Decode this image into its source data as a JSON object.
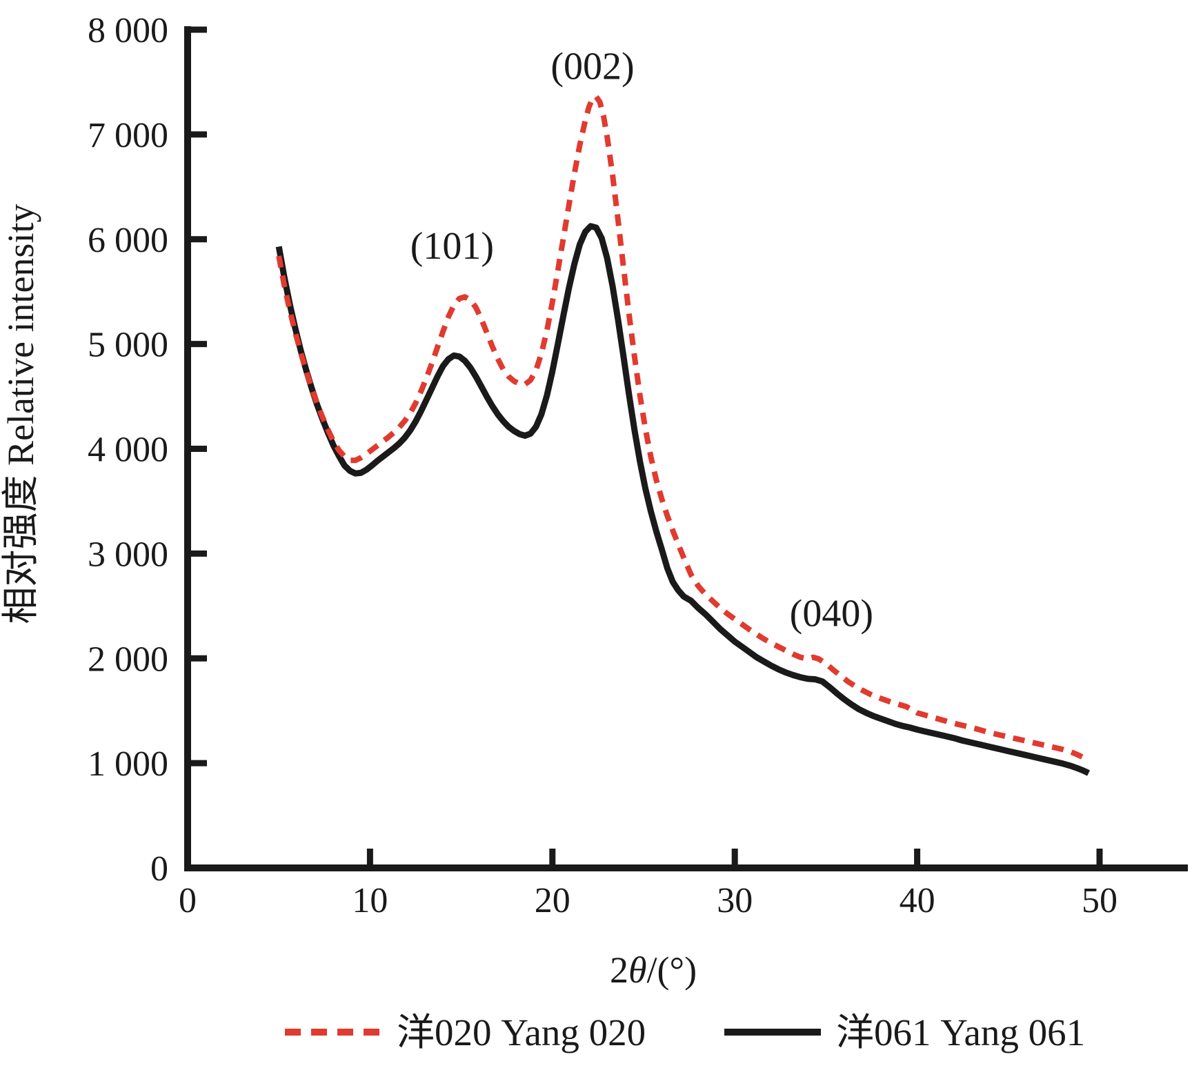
{
  "figure_title": "XRD pattern figure",
  "colors": {
    "background": "#ffffff",
    "axis": "#1a1a1a",
    "series_red": "#e13a2f",
    "series_black": "#1a1a1a"
  },
  "chart_data": {
    "type": "line",
    "title": "",
    "xlabel": "2θ/(°)",
    "ylabel": "相对强度  Relative intensity",
    "xlim": [
      0,
      54.8
    ],
    "ylim": [
      0,
      8030
    ],
    "grid": false,
    "legend_position": "bottom",
    "x_ticks": {
      "values": [
        0,
        10,
        20,
        30,
        40,
        50
      ],
      "labels": [
        "0",
        "10",
        "20",
        "30",
        "40",
        "50"
      ]
    },
    "y_ticks": {
      "values": [
        0,
        1000,
        2000,
        3000,
        4000,
        5000,
        6000,
        7000,
        8000
      ],
      "labels": [
        "0",
        "1 000",
        "2 000",
        "3 000",
        "4 000",
        "5 000",
        "6 000",
        "7 000",
        "8 000"
      ]
    },
    "annotations": [
      {
        "text": "(101)",
        "x": 14.5,
        "y": 5945
      },
      {
        "text": "(002)",
        "x": 22.2,
        "y": 7660
      },
      {
        "text": "(040)",
        "x": 35.3,
        "y": 2440
      }
    ],
    "series": [
      {
        "name": "洋061 Yang 061",
        "short_name": "yang-061",
        "color": "#1a1a1a",
        "style": "solid",
        "points": [
          [
            5.0,
            5930
          ],
          [
            5.3,
            5640
          ],
          [
            5.6,
            5380
          ],
          [
            5.9,
            5150
          ],
          [
            6.2,
            4940
          ],
          [
            6.5,
            4750
          ],
          [
            6.8,
            4580
          ],
          [
            7.1,
            4420
          ],
          [
            7.4,
            4280
          ],
          [
            7.7,
            4150
          ],
          [
            8.0,
            4030
          ],
          [
            8.3,
            3930
          ],
          [
            8.6,
            3840
          ],
          [
            8.9,
            3790
          ],
          [
            9.2,
            3765
          ],
          [
            9.5,
            3770
          ],
          [
            9.8,
            3800
          ],
          [
            10.1,
            3840
          ],
          [
            10.4,
            3885
          ],
          [
            10.7,
            3925
          ],
          [
            11.0,
            3965
          ],
          [
            11.3,
            4005
          ],
          [
            11.6,
            4050
          ],
          [
            11.9,
            4105
          ],
          [
            12.2,
            4175
          ],
          [
            12.5,
            4260
          ],
          [
            12.8,
            4360
          ],
          [
            13.1,
            4470
          ],
          [
            13.4,
            4580
          ],
          [
            13.7,
            4690
          ],
          [
            14.0,
            4790
          ],
          [
            14.3,
            4855
          ],
          [
            14.6,
            4890
          ],
          [
            14.9,
            4880
          ],
          [
            15.2,
            4840
          ],
          [
            15.5,
            4775
          ],
          [
            15.8,
            4690
          ],
          [
            16.1,
            4595
          ],
          [
            16.4,
            4500
          ],
          [
            16.7,
            4410
          ],
          [
            17.0,
            4330
          ],
          [
            17.3,
            4265
          ],
          [
            17.6,
            4210
          ],
          [
            17.9,
            4170
          ],
          [
            18.2,
            4140
          ],
          [
            18.5,
            4125
          ],
          [
            18.8,
            4145
          ],
          [
            19.1,
            4210
          ],
          [
            19.4,
            4330
          ],
          [
            19.7,
            4510
          ],
          [
            20.0,
            4740
          ],
          [
            20.3,
            5000
          ],
          [
            20.6,
            5270
          ],
          [
            20.9,
            5530
          ],
          [
            21.2,
            5760
          ],
          [
            21.5,
            5950
          ],
          [
            21.8,
            6070
          ],
          [
            22.1,
            6125
          ],
          [
            22.4,
            6110
          ],
          [
            22.7,
            6010
          ],
          [
            23.0,
            5820
          ],
          [
            23.3,
            5550
          ],
          [
            23.6,
            5230
          ],
          [
            23.9,
            4880
          ],
          [
            24.2,
            4520
          ],
          [
            24.5,
            4180
          ],
          [
            24.8,
            3880
          ],
          [
            25.1,
            3620
          ],
          [
            25.4,
            3400
          ],
          [
            25.7,
            3210
          ],
          [
            26.0,
            3040
          ],
          [
            26.3,
            2860
          ],
          [
            26.6,
            2730
          ],
          [
            26.9,
            2650
          ],
          [
            27.2,
            2590
          ],
          [
            27.6,
            2550
          ],
          [
            28.0,
            2480
          ],
          [
            28.4,
            2420
          ],
          [
            28.8,
            2350
          ],
          [
            29.2,
            2280
          ],
          [
            29.6,
            2220
          ],
          [
            30.0,
            2160
          ],
          [
            30.4,
            2110
          ],
          [
            30.8,
            2060
          ],
          [
            31.2,
            2010
          ],
          [
            31.6,
            1970
          ],
          [
            32.0,
            1930
          ],
          [
            32.4,
            1895
          ],
          [
            32.8,
            1865
          ],
          [
            33.2,
            1840
          ],
          [
            33.6,
            1820
          ],
          [
            34.0,
            1805
          ],
          [
            34.4,
            1800
          ],
          [
            34.8,
            1780
          ],
          [
            35.2,
            1725
          ],
          [
            35.6,
            1665
          ],
          [
            36.0,
            1610
          ],
          [
            36.4,
            1560
          ],
          [
            36.8,
            1515
          ],
          [
            37.2,
            1480
          ],
          [
            37.6,
            1450
          ],
          [
            38.0,
            1425
          ],
          [
            38.4,
            1400
          ],
          [
            38.8,
            1375
          ],
          [
            39.2,
            1355
          ],
          [
            39.6,
            1340
          ],
          [
            40.0,
            1320
          ],
          [
            40.5,
            1300
          ],
          [
            41.0,
            1280
          ],
          [
            41.5,
            1260
          ],
          [
            42.0,
            1240
          ],
          [
            42.5,
            1215
          ],
          [
            43.0,
            1195
          ],
          [
            43.5,
            1175
          ],
          [
            44.0,
            1155
          ],
          [
            44.5,
            1135
          ],
          [
            45.0,
            1115
          ],
          [
            45.5,
            1095
          ],
          [
            46.0,
            1075
          ],
          [
            46.5,
            1055
          ],
          [
            47.0,
            1035
          ],
          [
            47.5,
            1015
          ],
          [
            48.0,
            995
          ],
          [
            48.4,
            975
          ],
          [
            48.8,
            950
          ],
          [
            49.1,
            930
          ],
          [
            49.4,
            905
          ]
        ]
      },
      {
        "name": "洋020 Yang 020",
        "short_name": "yang-020",
        "color": "#e13a2f",
        "style": "dashed",
        "points": [
          [
            5.0,
            5840
          ],
          [
            5.3,
            5560
          ],
          [
            5.6,
            5320
          ],
          [
            5.9,
            5110
          ],
          [
            6.2,
            4920
          ],
          [
            6.5,
            4740
          ],
          [
            6.8,
            4580
          ],
          [
            7.1,
            4430
          ],
          [
            7.4,
            4300
          ],
          [
            7.7,
            4180
          ],
          [
            8.0,
            4070
          ],
          [
            8.3,
            3985
          ],
          [
            8.6,
            3925
          ],
          [
            8.9,
            3890
          ],
          [
            9.2,
            3890
          ],
          [
            9.5,
            3915
          ],
          [
            9.8,
            3950
          ],
          [
            10.1,
            3990
          ],
          [
            10.4,
            4030
          ],
          [
            10.7,
            4070
          ],
          [
            11.0,
            4110
          ],
          [
            11.3,
            4155
          ],
          [
            11.6,
            4205
          ],
          [
            11.9,
            4265
          ],
          [
            12.2,
            4340
          ],
          [
            12.5,
            4435
          ],
          [
            12.8,
            4550
          ],
          [
            13.1,
            4680
          ],
          [
            13.4,
            4820
          ],
          [
            13.7,
            4970
          ],
          [
            14.0,
            5120
          ],
          [
            14.3,
            5260
          ],
          [
            14.6,
            5370
          ],
          [
            14.9,
            5435
          ],
          [
            15.2,
            5450
          ],
          [
            15.5,
            5420
          ],
          [
            15.8,
            5350
          ],
          [
            16.1,
            5240
          ],
          [
            16.4,
            5110
          ],
          [
            16.7,
            4980
          ],
          [
            17.0,
            4860
          ],
          [
            17.3,
            4760
          ],
          [
            17.6,
            4690
          ],
          [
            17.9,
            4645
          ],
          [
            18.2,
            4620
          ],
          [
            18.5,
            4615
          ],
          [
            18.8,
            4655
          ],
          [
            19.1,
            4750
          ],
          [
            19.4,
            4910
          ],
          [
            19.7,
            5130
          ],
          [
            20.0,
            5400
          ],
          [
            20.3,
            5700
          ],
          [
            20.6,
            6010
          ],
          [
            20.9,
            6320
          ],
          [
            21.2,
            6620
          ],
          [
            21.5,
            6900
          ],
          [
            21.8,
            7130
          ],
          [
            22.0,
            7260
          ],
          [
            22.2,
            7345
          ],
          [
            22.4,
            7360
          ],
          [
            22.6,
            7310
          ],
          [
            22.8,
            7180
          ],
          [
            23.0,
            6980
          ],
          [
            23.3,
            6610
          ],
          [
            23.6,
            6180
          ],
          [
            23.9,
            5730
          ],
          [
            24.2,
            5290
          ],
          [
            24.5,
            4880
          ],
          [
            24.8,
            4510
          ],
          [
            25.1,
            4190
          ],
          [
            25.4,
            3920
          ],
          [
            25.7,
            3700
          ],
          [
            26.0,
            3520
          ],
          [
            26.3,
            3360
          ],
          [
            26.6,
            3220
          ],
          [
            26.9,
            3090
          ],
          [
            27.2,
            2960
          ],
          [
            27.6,
            2800
          ],
          [
            28.0,
            2690
          ],
          [
            28.4,
            2610
          ],
          [
            28.8,
            2545
          ],
          [
            29.2,
            2480
          ],
          [
            29.6,
            2425
          ],
          [
            30.0,
            2375
          ],
          [
            30.4,
            2325
          ],
          [
            30.8,
            2275
          ],
          [
            31.2,
            2230
          ],
          [
            31.6,
            2185
          ],
          [
            32.0,
            2145
          ],
          [
            32.4,
            2110
          ],
          [
            32.8,
            2075
          ],
          [
            33.2,
            2040
          ],
          [
            33.6,
            2010
          ],
          [
            34.0,
            1995
          ],
          [
            34.3,
            2010
          ],
          [
            34.6,
            1995
          ],
          [
            35.0,
            1950
          ],
          [
            35.4,
            1890
          ],
          [
            35.8,
            1835
          ],
          [
            36.2,
            1780
          ],
          [
            36.6,
            1735
          ],
          [
            37.0,
            1695
          ],
          [
            37.4,
            1660
          ],
          [
            37.8,
            1630
          ],
          [
            38.2,
            1605
          ],
          [
            38.6,
            1580
          ],
          [
            39.0,
            1560
          ],
          [
            39.4,
            1540
          ],
          [
            40.0,
            1480
          ],
          [
            40.5,
            1455
          ],
          [
            41.0,
            1430
          ],
          [
            41.5,
            1405
          ],
          [
            42.0,
            1380
          ],
          [
            42.5,
            1360
          ],
          [
            43.0,
            1340
          ],
          [
            43.5,
            1315
          ],
          [
            44.0,
            1290
          ],
          [
            44.5,
            1270
          ],
          [
            45.0,
            1250
          ],
          [
            45.5,
            1230
          ],
          [
            46.0,
            1210
          ],
          [
            46.5,
            1190
          ],
          [
            47.0,
            1170
          ],
          [
            47.5,
            1150
          ],
          [
            48.0,
            1130
          ],
          [
            48.4,
            1110
          ],
          [
            48.8,
            1080
          ],
          [
            49.1,
            1055
          ],
          [
            49.4,
            1025
          ]
        ]
      }
    ],
    "legend": [
      {
        "label": "洋020 Yang 020",
        "color": "#e13a2f",
        "dash": true
      },
      {
        "label": "洋061 Yang 061",
        "color": "#1a1a1a",
        "dash": false
      }
    ]
  }
}
